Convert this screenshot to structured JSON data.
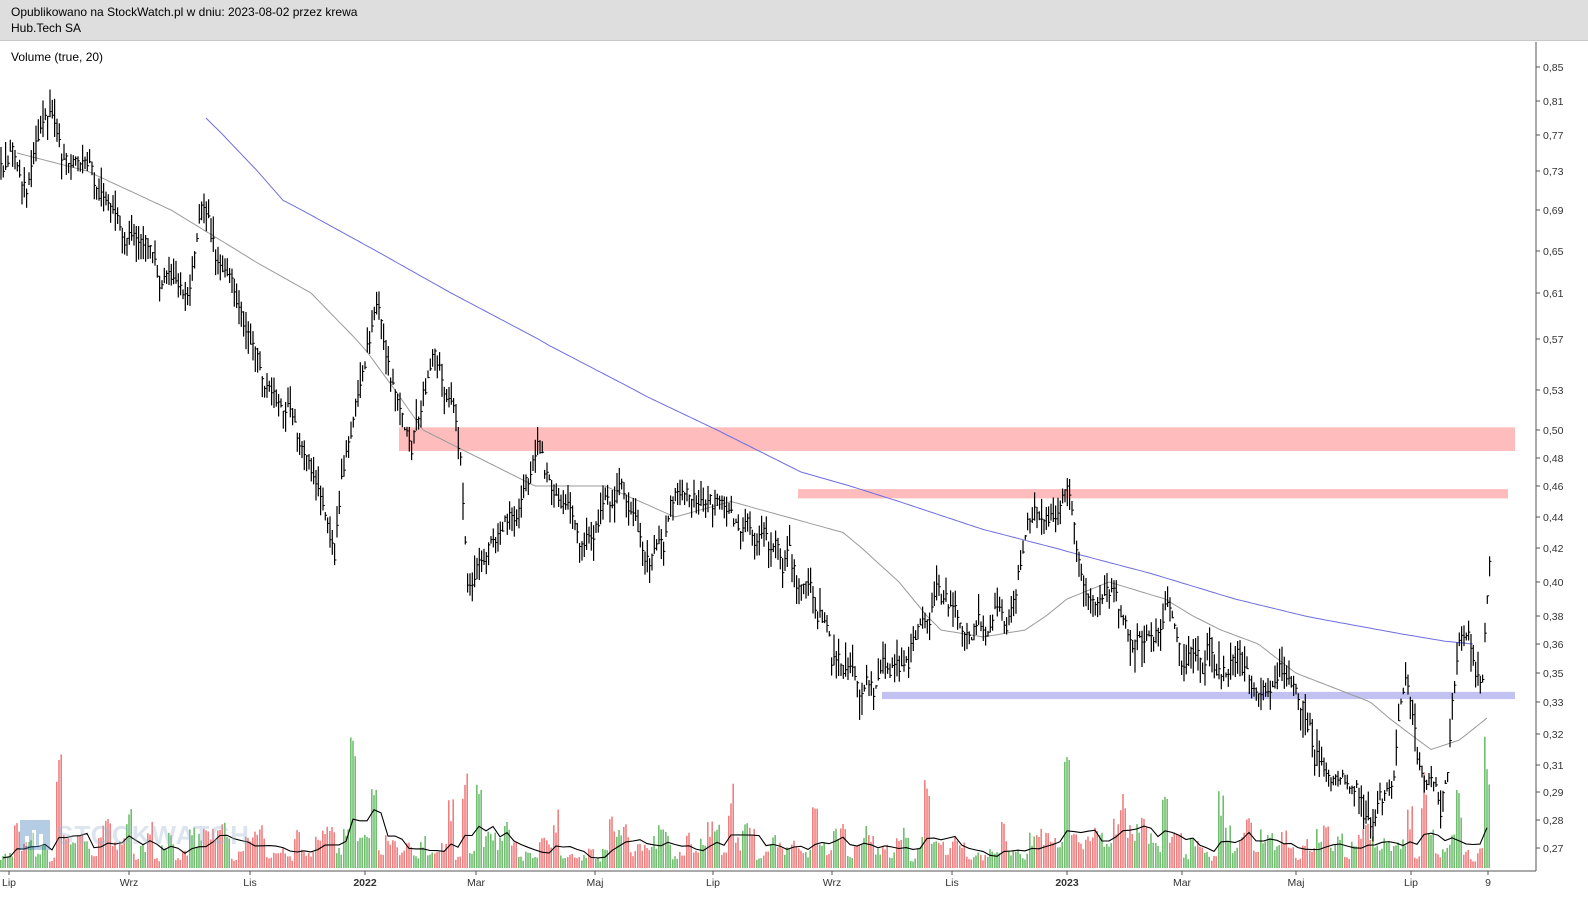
{
  "header": {
    "published_line": "Opublikowano na StockWatch.pl w dniu: 2023-08-02 przez krewa",
    "instrument": "Hub.Tech SA"
  },
  "indicator_label": "Volume (true, 20)",
  "watermark": "STOCKWATCH",
  "colors": {
    "price": "#000000",
    "ma_fast": "#9a9a9a",
    "ma_slow": "#6e6ee0",
    "resistance_zone": "#ffbcbc",
    "support_zone": "#c2c2f2",
    "volume_up": "#6fbf6f",
    "volume_down": "#f08080",
    "volume_avg": "#000000",
    "header_bg": "#dedede"
  },
  "chart_data": {
    "type": "candlestick-with-volume",
    "scale": "log",
    "ylim": [
      0.265,
      0.87
    ],
    "y_ticks": [
      "0,85",
      "0,81",
      "0,77",
      "0,73",
      "0,69",
      "0,65",
      "0,61",
      "0,57",
      "0,53",
      "0,50",
      "0,48",
      "0,46",
      "0,44",
      "0,42",
      "0,40",
      "0,38",
      "0,36",
      "0,35",
      "0,33",
      "0,32",
      "0,31",
      "0,29",
      "0,28",
      "0,27"
    ],
    "x_ticks": [
      "Lip",
      "Wrz",
      "Lis",
      "2022",
      "Mar",
      "Maj",
      "Lip",
      "Wrz",
      "Lis",
      "2023",
      "Mar",
      "Maj",
      "Lip",
      "9"
    ],
    "x_tick_bold": [
      "2022",
      "2023"
    ],
    "close_anchors": [
      [
        0,
        0.75
      ],
      [
        3,
        0.72
      ],
      [
        6,
        0.8
      ],
      [
        7,
        0.78
      ],
      [
        8,
        0.74
      ],
      [
        12,
        0.73
      ],
      [
        16,
        0.68
      ],
      [
        22,
        0.63
      ],
      [
        26,
        0.6
      ],
      [
        28,
        0.68
      ],
      [
        30,
        0.65
      ],
      [
        33,
        0.61
      ],
      [
        38,
        0.52
      ],
      [
        42,
        0.5
      ],
      [
        47,
        0.42
      ],
      [
        49,
        0.5
      ],
      [
        53,
        0.59
      ],
      [
        56,
        0.53
      ],
      [
        58,
        0.49
      ],
      [
        61,
        0.56
      ],
      [
        63,
        0.53
      ],
      [
        65,
        0.48
      ],
      [
        66,
        0.39
      ],
      [
        69,
        0.42
      ],
      [
        73,
        0.44
      ],
      [
        76,
        0.49
      ],
      [
        79,
        0.45
      ],
      [
        83,
        0.42
      ],
      [
        86,
        0.46
      ],
      [
        89,
        0.45
      ],
      [
        92,
        0.41
      ],
      [
        96,
        0.45
      ],
      [
        99,
        0.44
      ],
      [
        102,
        0.46
      ],
      [
        105,
        0.44
      ],
      [
        107,
        0.43
      ],
      [
        110,
        0.42
      ],
      [
        114,
        0.4
      ],
      [
        117,
        0.38
      ],
      [
        119,
        0.35
      ],
      [
        121,
        0.345
      ],
      [
        123,
        0.34
      ],
      [
        125,
        0.345
      ],
      [
        127,
        0.35
      ],
      [
        129,
        0.36
      ],
      [
        131,
        0.38
      ],
      [
        133,
        0.39
      ],
      [
        136,
        0.38
      ],
      [
        139,
        0.37
      ],
      [
        142,
        0.38
      ],
      [
        144,
        0.38
      ],
      [
        146,
        0.43
      ],
      [
        149,
        0.44
      ],
      [
        152,
        0.45
      ],
      [
        154,
        0.4
      ],
      [
        156,
        0.38
      ],
      [
        158,
        0.4
      ],
      [
        160,
        0.37
      ],
      [
        162,
        0.36
      ],
      [
        164,
        0.37
      ],
      [
        166,
        0.38
      ],
      [
        168,
        0.35
      ],
      [
        170,
        0.35
      ],
      [
        172,
        0.36
      ],
      [
        174,
        0.35
      ],
      [
        176,
        0.35
      ],
      [
        178,
        0.34
      ],
      [
        180,
        0.34
      ],
      [
        182,
        0.35
      ],
      [
        184,
        0.34
      ],
      [
        186,
        0.32
      ],
      [
        188,
        0.31
      ],
      [
        191,
        0.3
      ],
      [
        193,
        0.29
      ],
      [
        195,
        0.28
      ],
      [
        197,
        0.29
      ],
      [
        198,
        0.3
      ],
      [
        200,
        0.34
      ],
      [
        202,
        0.3
      ],
      [
        203,
        0.295
      ],
      [
        205,
        0.29
      ],
      [
        206,
        0.3
      ],
      [
        207,
        0.34
      ],
      [
        208,
        0.365
      ],
      [
        210,
        0.355
      ],
      [
        211,
        0.35
      ],
      [
        212,
        0.425
      ]
    ],
    "ma_slow_anchors": [
      [
        29,
        0.79
      ],
      [
        40,
        0.7
      ],
      [
        52,
        0.655
      ],
      [
        64,
        0.61
      ],
      [
        78,
        0.565
      ],
      [
        92,
        0.525
      ],
      [
        104,
        0.495
      ],
      [
        114,
        0.47
      ],
      [
        128,
        0.45
      ],
      [
        140,
        0.432
      ],
      [
        152,
        0.418
      ],
      [
        164,
        0.405
      ],
      [
        176,
        0.39
      ],
      [
        188,
        0.378
      ],
      [
        200,
        0.367
      ],
      [
        206,
        0.362
      ],
      [
        210,
        0.36
      ]
    ],
    "ma_fast_anchors": [
      [
        2,
        0.75
      ],
      [
        12,
        0.73
      ],
      [
        24,
        0.69
      ],
      [
        36,
        0.64
      ],
      [
        44,
        0.61
      ],
      [
        52,
        0.56
      ],
      [
        60,
        0.5
      ],
      [
        68,
        0.48
      ],
      [
        76,
        0.46
      ],
      [
        86,
        0.46
      ],
      [
        96,
        0.44
      ],
      [
        104,
        0.45
      ],
      [
        112,
        0.44
      ],
      [
        120,
        0.43
      ],
      [
        128,
        0.4
      ],
      [
        134,
        0.37
      ],
      [
        140,
        0.365
      ],
      [
        146,
        0.37
      ],
      [
        152,
        0.39
      ],
      [
        158,
        0.4
      ],
      [
        166,
        0.39
      ],
      [
        174,
        0.37
      ],
      [
        182,
        0.355
      ],
      [
        190,
        0.34
      ],
      [
        198,
        0.325
      ],
      [
        204,
        0.315
      ],
      [
        208,
        0.318
      ],
      [
        212,
        0.325
      ]
    ],
    "zones": [
      {
        "kind": "resistance",
        "low": 0.485,
        "high": 0.502,
        "start": 57,
        "end": 216
      },
      {
        "kind": "resistance",
        "low": 0.452,
        "high": 0.458,
        "start": 114,
        "end": 215
      },
      {
        "kind": "support",
        "low": 0.332,
        "high": 0.337,
        "start": 126,
        "end": 216
      }
    ],
    "volume_spikes": [
      [
        8,
        0.55
      ],
      [
        50,
        0.95
      ],
      [
        53,
        0.48
      ],
      [
        66,
        0.5
      ],
      [
        68,
        0.45
      ],
      [
        79,
        0.3
      ],
      [
        87,
        0.28
      ],
      [
        104,
        0.45
      ],
      [
        116,
        0.33
      ],
      [
        152,
        0.55
      ],
      [
        160,
        0.42
      ],
      [
        203,
        0.48
      ],
      [
        208,
        0.38
      ],
      [
        212,
        0.72
      ]
    ]
  }
}
